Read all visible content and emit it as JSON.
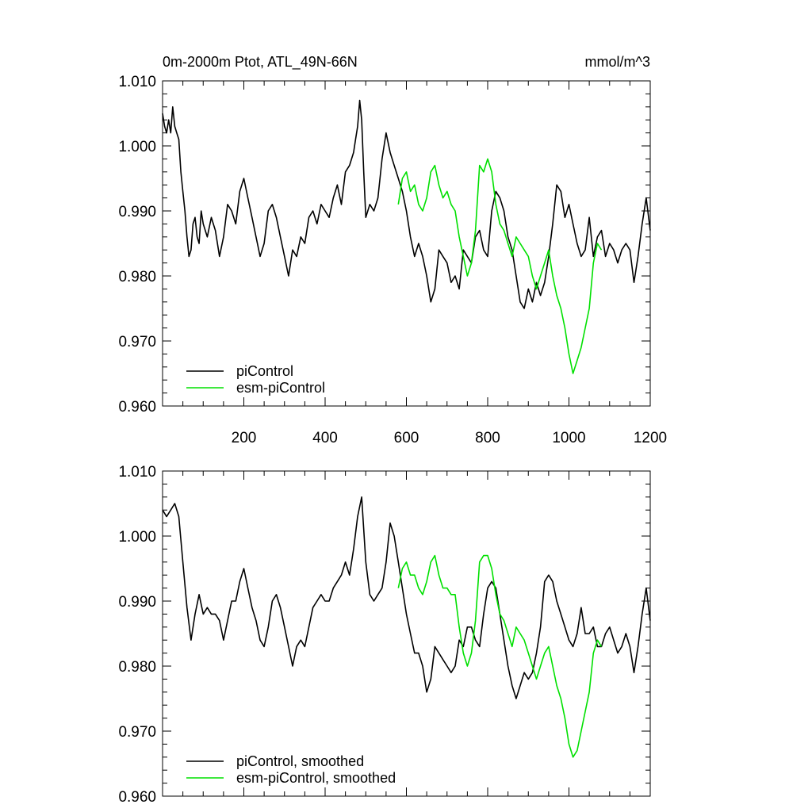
{
  "figure": {
    "title_left": "0m-2000m Ptot, ATL_49N-66N",
    "title_right": "mmol/m^3"
  },
  "chart_data": [
    {
      "type": "line",
      "title": "0m-2000m Ptot, ATL_49N-66N",
      "units": "mmol/m^3",
      "xlim": [
        0,
        1200
      ],
      "ylim": [
        0.96,
        1.01
      ],
      "xticks": [
        200,
        400,
        600,
        800,
        1000,
        1200
      ],
      "yticks": [
        "1.010",
        "1.000",
        "0.990",
        "0.980",
        "0.970",
        "0.960"
      ],
      "legend_position": "bottom-left",
      "grid": false,
      "series": [
        {
          "name": "piControl",
          "color": "#000000",
          "x": [
            0,
            5,
            10,
            15,
            20,
            25,
            30,
            35,
            40,
            45,
            50,
            55,
            60,
            65,
            70,
            75,
            80,
            85,
            90,
            95,
            100,
            110,
            120,
            130,
            140,
            150,
            160,
            170,
            180,
            190,
            200,
            210,
            220,
            230,
            240,
            250,
            260,
            270,
            280,
            290,
            300,
            310,
            320,
            330,
            340,
            350,
            360,
            370,
            380,
            390,
            400,
            410,
            420,
            430,
            440,
            450,
            460,
            470,
            475,
            480,
            485,
            490,
            495,
            500,
            505,
            510,
            520,
            530,
            540,
            550,
            560,
            570,
            580,
            590,
            600,
            610,
            620,
            630,
            640,
            650,
            660,
            670,
            680,
            690,
            700,
            710,
            720,
            730,
            740,
            750,
            760,
            770,
            780,
            790,
            800,
            810,
            820,
            830,
            840,
            850,
            860,
            870,
            880,
            890,
            900,
            910,
            920,
            930,
            940,
            950,
            960,
            970,
            980,
            990,
            1000,
            1010,
            1020,
            1030,
            1040,
            1050,
            1060,
            1070,
            1080,
            1090,
            1100,
            1110,
            1120,
            1130,
            1140,
            1150,
            1160,
            1170,
            1180,
            1190,
            1200
          ],
          "values": [
            1.005,
            1.003,
            1.002,
            1.004,
            1.002,
            1.006,
            1.003,
            1.002,
            1.001,
            0.996,
            0.993,
            0.99,
            0.986,
            0.983,
            0.984,
            0.988,
            0.989,
            0.986,
            0.985,
            0.99,
            0.988,
            0.986,
            0.989,
            0.987,
            0.983,
            0.986,
            0.991,
            0.99,
            0.988,
            0.993,
            0.995,
            0.992,
            0.989,
            0.986,
            0.983,
            0.985,
            0.99,
            0.991,
            0.989,
            0.986,
            0.983,
            0.98,
            0.984,
            0.983,
            0.986,
            0.985,
            0.989,
            0.99,
            0.988,
            0.991,
            0.99,
            0.989,
            0.992,
            0.994,
            0.991,
            0.996,
            0.997,
            0.999,
            1.001,
            1.003,
            1.007,
            1.004,
            0.996,
            0.989,
            0.99,
            0.991,
            0.99,
            0.992,
            0.998,
            1.002,
            0.999,
            0.997,
            0.995,
            0.993,
            0.99,
            0.986,
            0.983,
            0.985,
            0.983,
            0.98,
            0.976,
            0.978,
            0.984,
            0.983,
            0.982,
            0.979,
            0.98,
            0.978,
            0.984,
            0.983,
            0.982,
            0.986,
            0.987,
            0.984,
            0.983,
            0.99,
            0.993,
            0.992,
            0.99,
            0.986,
            0.984,
            0.98,
            0.976,
            0.975,
            0.978,
            0.976,
            0.979,
            0.977,
            0.979,
            0.983,
            0.988,
            0.994,
            0.993,
            0.989,
            0.991,
            0.988,
            0.985,
            0.983,
            0.984,
            0.989,
            0.983,
            0.986,
            0.987,
            0.983,
            0.985,
            0.984,
            0.982,
            0.984,
            0.985,
            0.984,
            0.979,
            0.983,
            0.988,
            0.992,
            0.987
          ]
        },
        {
          "name": "esm-piControl",
          "color": "#00e000",
          "x": [
            580,
            590,
            600,
            610,
            620,
            630,
            640,
            650,
            660,
            670,
            680,
            690,
            700,
            710,
            720,
            730,
            740,
            750,
            760,
            770,
            780,
            790,
            800,
            810,
            820,
            830,
            840,
            850,
            860,
            870,
            880,
            890,
            900,
            910,
            920,
            930,
            940,
            950,
            960,
            970,
            980,
            990,
            1000,
            1010,
            1020,
            1030,
            1040,
            1050,
            1060,
            1070,
            1080
          ],
          "values": [
            0.991,
            0.995,
            0.996,
            0.993,
            0.994,
            0.991,
            0.99,
            0.992,
            0.996,
            0.997,
            0.994,
            0.992,
            0.993,
            0.991,
            0.99,
            0.986,
            0.983,
            0.98,
            0.982,
            0.987,
            0.997,
            0.996,
            0.998,
            0.996,
            0.991,
            0.988,
            0.987,
            0.985,
            0.983,
            0.986,
            0.985,
            0.984,
            0.983,
            0.98,
            0.978,
            0.98,
            0.982,
            0.984,
            0.98,
            0.977,
            0.975,
            0.972,
            0.968,
            0.965,
            0.967,
            0.969,
            0.972,
            0.975,
            0.982,
            0.985,
            0.984
          ]
        }
      ]
    },
    {
      "type": "line",
      "xlim": [
        0,
        1200
      ],
      "ylim": [
        0.96,
        1.01
      ],
      "yticks": [
        "1.010",
        "1.000",
        "0.990",
        "0.980",
        "0.970",
        "0.960"
      ],
      "legend_position": "bottom-left",
      "grid": false,
      "series": [
        {
          "name": "piControl, smoothed",
          "color": "#000000",
          "x": [
            0,
            10,
            20,
            30,
            40,
            50,
            60,
            70,
            80,
            90,
            100,
            110,
            120,
            130,
            140,
            150,
            160,
            170,
            180,
            190,
            200,
            210,
            220,
            230,
            240,
            250,
            260,
            270,
            280,
            290,
            300,
            310,
            320,
            330,
            340,
            350,
            360,
            370,
            380,
            390,
            400,
            410,
            420,
            430,
            440,
            450,
            460,
            470,
            480,
            490,
            500,
            510,
            520,
            530,
            540,
            550,
            560,
            570,
            580,
            590,
            600,
            610,
            620,
            630,
            640,
            650,
            660,
            670,
            680,
            690,
            700,
            710,
            720,
            730,
            740,
            750,
            760,
            770,
            780,
            790,
            800,
            810,
            820,
            830,
            840,
            850,
            860,
            870,
            880,
            890,
            900,
            910,
            920,
            930,
            940,
            950,
            960,
            970,
            980,
            990,
            1000,
            1010,
            1020,
            1030,
            1040,
            1050,
            1060,
            1070,
            1080,
            1090,
            1100,
            1110,
            1120,
            1130,
            1140,
            1150,
            1160,
            1170,
            1180,
            1190,
            1200
          ],
          "values": [
            1.004,
            1.003,
            1.004,
            1.005,
            1.003,
            0.996,
            0.989,
            0.984,
            0.988,
            0.991,
            0.988,
            0.989,
            0.988,
            0.988,
            0.987,
            0.984,
            0.987,
            0.99,
            0.99,
            0.993,
            0.995,
            0.992,
            0.989,
            0.987,
            0.984,
            0.983,
            0.986,
            0.99,
            0.991,
            0.989,
            0.986,
            0.983,
            0.98,
            0.983,
            0.984,
            0.983,
            0.986,
            0.989,
            0.99,
            0.991,
            0.99,
            0.99,
            0.992,
            0.993,
            0.994,
            0.996,
            0.994,
            0.998,
            1.003,
            1.006,
            0.996,
            0.991,
            0.99,
            0.991,
            0.992,
            0.996,
            1.002,
            1.0,
            0.996,
            0.992,
            0.988,
            0.985,
            0.982,
            0.982,
            0.98,
            0.976,
            0.978,
            0.983,
            0.982,
            0.981,
            0.98,
            0.979,
            0.98,
            0.984,
            0.983,
            0.986,
            0.986,
            0.984,
            0.983,
            0.988,
            0.992,
            0.993,
            0.992,
            0.988,
            0.984,
            0.98,
            0.977,
            0.975,
            0.977,
            0.979,
            0.978,
            0.979,
            0.982,
            0.986,
            0.993,
            0.994,
            0.993,
            0.99,
            0.988,
            0.986,
            0.984,
            0.983,
            0.985,
            0.989,
            0.985,
            0.985,
            0.986,
            0.983,
            0.983,
            0.985,
            0.986,
            0.984,
            0.982,
            0.983,
            0.985,
            0.983,
            0.979,
            0.983,
            0.988,
            0.992,
            0.987
          ]
        },
        {
          "name": "esm-piControl, smoothed",
          "color": "#00e000",
          "x": [
            580,
            590,
            600,
            610,
            620,
            630,
            640,
            650,
            660,
            670,
            680,
            690,
            700,
            710,
            720,
            730,
            740,
            750,
            760,
            770,
            780,
            790,
            800,
            810,
            820,
            830,
            840,
            850,
            860,
            870,
            880,
            890,
            900,
            910,
            920,
            930,
            940,
            950,
            960,
            970,
            980,
            990,
            1000,
            1010,
            1020,
            1030,
            1040,
            1050,
            1060,
            1070,
            1080
          ],
          "values": [
            0.992,
            0.995,
            0.996,
            0.994,
            0.994,
            0.992,
            0.991,
            0.993,
            0.996,
            0.997,
            0.994,
            0.992,
            0.992,
            0.991,
            0.991,
            0.986,
            0.982,
            0.98,
            0.982,
            0.987,
            0.996,
            0.997,
            0.997,
            0.995,
            0.991,
            0.988,
            0.987,
            0.985,
            0.983,
            0.986,
            0.985,
            0.984,
            0.982,
            0.98,
            0.978,
            0.98,
            0.982,
            0.983,
            0.98,
            0.977,
            0.975,
            0.972,
            0.968,
            0.966,
            0.967,
            0.97,
            0.973,
            0.976,
            0.982,
            0.984,
            0.983
          ]
        }
      ]
    }
  ]
}
